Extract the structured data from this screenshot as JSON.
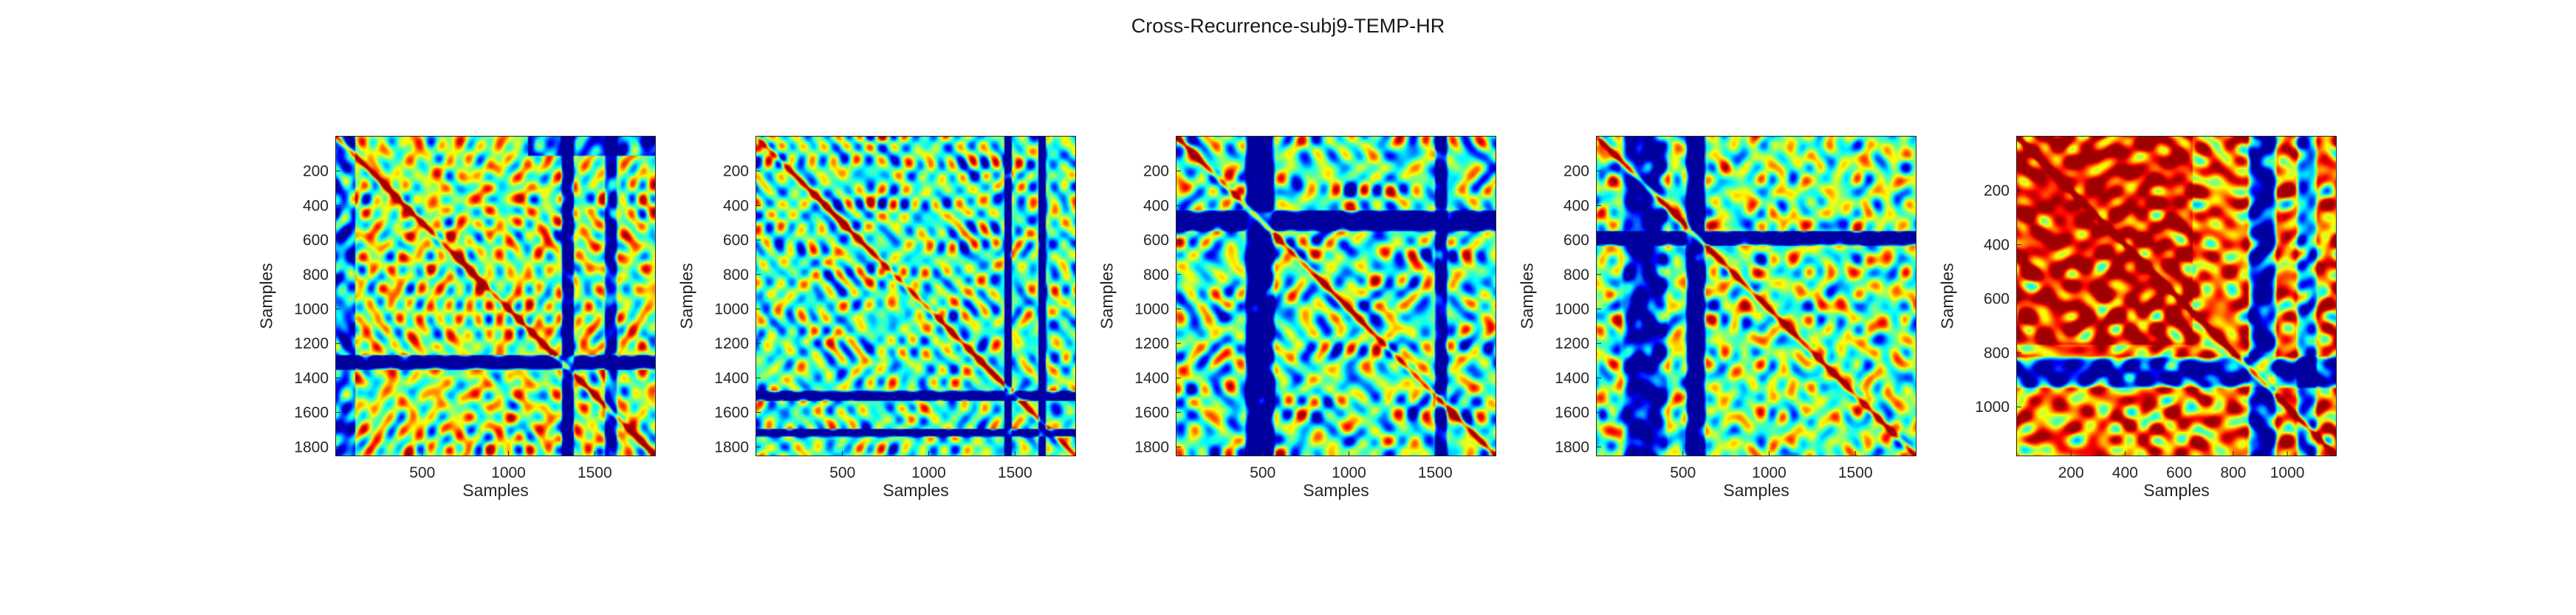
{
  "figure": {
    "title": "Cross-Recurrence-subj9-TEMP-HR"
  },
  "colors": {
    "colormap": "jet",
    "frame": "#262626",
    "background": "#ffffff"
  },
  "chart_data": [
    {
      "type": "heatmap",
      "xlabel": "Samples",
      "ylabel": "Samples",
      "n": 1850,
      "xticks": [
        500,
        1000,
        1500
      ],
      "yticks": [
        200,
        400,
        600,
        800,
        1000,
        1200,
        1400,
        1600,
        1800
      ],
      "ybands": [
        [
          1270,
          1340
        ]
      ],
      "xbands": [
        [
          1310,
          1370
        ]
      ],
      "xsoft": [
        [
          1560,
          1620
        ]
      ],
      "seed": 3,
      "bias": 0.55,
      "mode": "a"
    },
    {
      "type": "heatmap",
      "xlabel": "Samples",
      "ylabel": "Samples",
      "n": 1850,
      "xticks": [
        500,
        1000,
        1500
      ],
      "yticks": [
        200,
        400,
        600,
        800,
        1000,
        1200,
        1400,
        1600,
        1800
      ],
      "ybands": [
        [
          1480,
          1520
        ],
        [
          1700,
          1730
        ]
      ],
      "xbands": [
        [
          1440,
          1470
        ],
        [
          1640,
          1670
        ]
      ],
      "xsoft": [],
      "seed": 11,
      "bias": 0.45,
      "mode": "b"
    },
    {
      "type": "heatmap",
      "xlabel": "Samples",
      "ylabel": "Samples",
      "n": 1850,
      "xticks": [
        500,
        1000,
        1500
      ],
      "yticks": [
        200,
        400,
        600,
        800,
        1000,
        1200,
        1400,
        1600,
        1800
      ],
      "ybands": [
        [
          430,
          540
        ]
      ],
      "xbands": [
        [
          400,
          560
        ]
      ],
      "xsoft": [
        [
          1500,
          1560
        ]
      ],
      "seed": 27,
      "bias": 0.45,
      "mode": "c"
    },
    {
      "type": "heatmap",
      "xlabel": "Samples",
      "ylabel": "Samples",
      "n": 1850,
      "xticks": [
        500,
        1000,
        1500
      ],
      "yticks": [
        200,
        400,
        600,
        800,
        1000,
        1200,
        1400,
        1600,
        1800
      ],
      "ybands": [
        [
          550,
          620
        ]
      ],
      "xbands": [
        [
          520,
          620
        ]
      ],
      "xsoft": [
        [
          150,
          400
        ]
      ],
      "seed": 41,
      "bias": 0.5,
      "mode": "d"
    },
    {
      "type": "heatmap",
      "xlabel": "Samples",
      "ylabel": "Samples",
      "n": 1180,
      "xticks": [
        200,
        400,
        600,
        800,
        1000
      ],
      "yticks": [
        200,
        400,
        600,
        800,
        1000
      ],
      "ybands": [
        [
          820,
          920
        ]
      ],
      "xbands": [
        [
          860,
          950
        ]
      ],
      "xsoft": [
        [
          1040,
          1100
        ]
      ],
      "seed": 59,
      "bias": 0.75,
      "mode": "e"
    }
  ]
}
